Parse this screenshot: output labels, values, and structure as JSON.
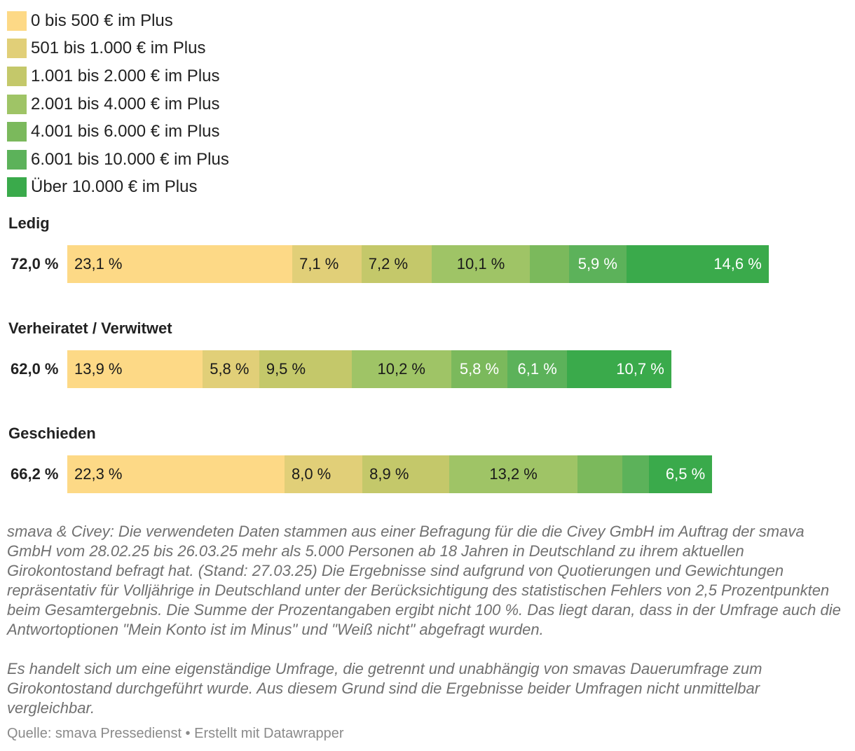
{
  "legend": [
    {
      "label": "0 bis 500 € im Plus",
      "color": "#fdd986"
    },
    {
      "label": "501 bis 1.000 € im Plus",
      "color": "#e1cf78"
    },
    {
      "label": "1.001 bis 2.000 € im Plus",
      "color": "#c4c86a"
    },
    {
      "label": "2.001 bis 4.000 € im Plus",
      "color": "#9fc466"
    },
    {
      "label": "4.001 bis 6.000 € im Plus",
      "color": "#7bb95c"
    },
    {
      "label": "6.001 bis 10.000 € im Plus",
      "color": "#5cb25a"
    },
    {
      "label": "Über 10.000 € im Plus",
      "color": "#3aaa4b"
    }
  ],
  "chart_data": {
    "type": "bar",
    "orientation": "horizontal",
    "stacked": true,
    "unit": "%",
    "series_names": [
      "0 bis 500 € im Plus",
      "501 bis 1.000 € im Plus",
      "1.001 bis 2.000 € im Plus",
      "2.001 bis 4.000 € im Plus",
      "4.001 bis 6.000 € im Plus",
      "6.001 bis 10.000 € im Plus",
      "Über 10.000 € im Plus"
    ],
    "groups": [
      {
        "title": "Ledig",
        "total": "72,0 %",
        "values": [
          23.1,
          7.1,
          7.2,
          10.1,
          4.0,
          5.9,
          14.6
        ],
        "labels": [
          "23,1 %",
          "7,1 %",
          "7,2 %",
          "10,1 %",
          "",
          "5,9 %",
          "14,6 %"
        ]
      },
      {
        "title": "Verheiratet / Verwitwet",
        "total": "62,0 %",
        "values": [
          13.9,
          5.8,
          9.5,
          10.2,
          5.8,
          6.1,
          10.7
        ],
        "labels": [
          "13,9 %",
          "5,8 %",
          "9,5 %",
          "10,2 %",
          "5,8 %",
          "6,1 %",
          "10,7 %"
        ]
      },
      {
        "title": "Geschieden",
        "total": "66,2 %",
        "values": [
          22.3,
          8.0,
          8.9,
          13.2,
          4.6,
          2.7,
          6.5
        ],
        "labels": [
          "22,3 %",
          "8,0 %",
          "8,9 %",
          "13,2 %",
          "",
          "",
          "6,5 %"
        ]
      }
    ]
  },
  "notes": {
    "paragraph1": "smava & Civey: Die verwendeten Daten stammen aus einer Befragung für die die Civey GmbH im Auftrag der smava GmbH vom 28.02.25 bis 26.03.25 mehr als 5.000 Personen ab 18 Jahren in Deutschland zu ihrem aktuellen Girokontostand befragt hat. (Stand: 27.03.25) Die Ergebnisse sind aufgrund von Quotierungen und Gewichtungen repräsentativ für Volljährige in Deutschland unter der Berücksichtigung des statistischen Fehlers von 2,5 Prozentpunkten beim Gesamtergebnis. Die Summe der Prozentangaben ergibt nicht 100 %. Das liegt daran, dass in der Umfrage auch die Antwortoptionen \"Mein Konto ist im Minus\" und \"Weiß nicht\" abgefragt wurden.",
    "paragraph2": "Es handelt sich um eine eigenständige Umfrage, die getrennt und unabhängig von smavas Dauerumfrage zum Girokontostand durchgeführt wurde. Aus diesem Grund sind die Ergebnisse beider Umfragen nicht unmittelbar vergleichbar."
  },
  "source": "Quelle: smava Pressedienst • Erstellt mit Datawrapper"
}
